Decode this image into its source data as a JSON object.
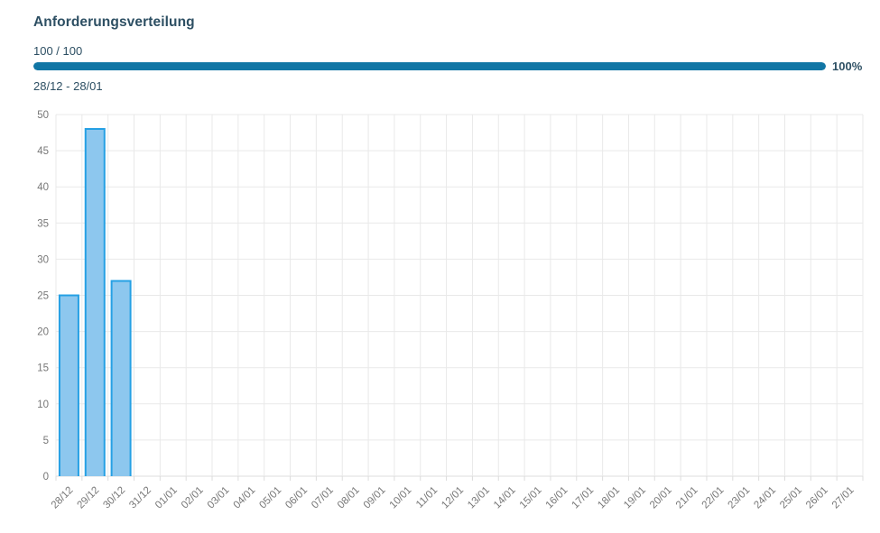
{
  "header": {
    "title": "Anforderungsverteilung",
    "progress_count": "100 / 100",
    "progress_percent": 100,
    "progress_percent_label": "100%",
    "date_range": "28/12 - 28/01"
  },
  "colors": {
    "title_text": "#2d4f63",
    "progress_bar": "#1176a5",
    "bar_fill": "#8dc7ee",
    "bar_border": "#25a0e4",
    "grid_line": "#e9e9e9",
    "axis_line": "#dcdcdc",
    "axis_text": "#777777"
  },
  "chart_data": {
    "type": "bar",
    "title": "Anforderungsverteilung",
    "categories": [
      "28/12",
      "29/12",
      "30/12",
      "31/12",
      "01/01",
      "02/01",
      "03/01",
      "04/01",
      "05/01",
      "06/01",
      "07/01",
      "08/01",
      "09/01",
      "10/01",
      "11/01",
      "12/01",
      "13/01",
      "14/01",
      "15/01",
      "16/01",
      "17/01",
      "18/01",
      "19/01",
      "20/01",
      "21/01",
      "22/01",
      "23/01",
      "24/01",
      "25/01",
      "26/01",
      "27/01"
    ],
    "values": [
      25,
      48,
      27,
      0,
      0,
      0,
      0,
      0,
      0,
      0,
      0,
      0,
      0,
      0,
      0,
      0,
      0,
      0,
      0,
      0,
      0,
      0,
      0,
      0,
      0,
      0,
      0,
      0,
      0,
      0,
      0
    ],
    "xlabel": "",
    "ylabel": "",
    "ylim": [
      0,
      50
    ],
    "ytick_step": 5,
    "grid": true,
    "legend_position": "none",
    "xtick_rotation": -45
  }
}
